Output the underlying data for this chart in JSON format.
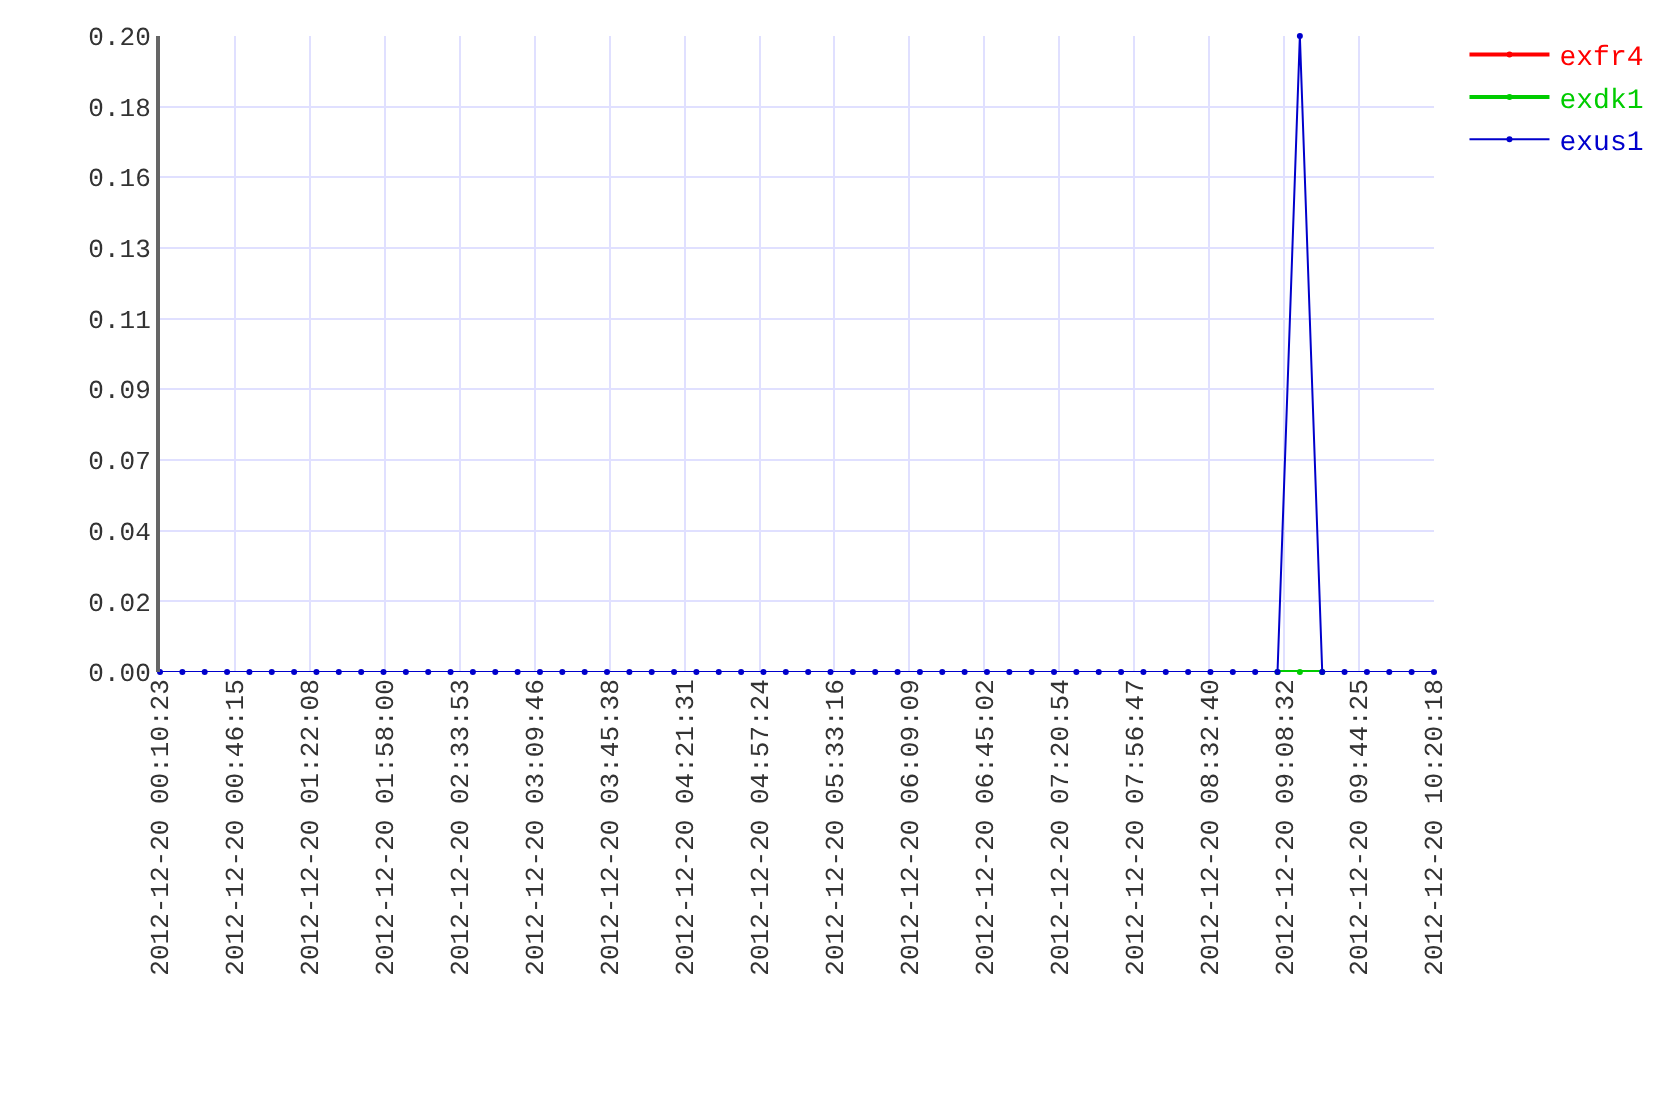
{
  "chart_data": {
    "type": "line",
    "x": [
      "2012-12-20T00:10:23",
      "2012-12-20T00:21:05",
      "2012-12-20T00:31:47",
      "2012-12-20T00:42:29",
      "2012-12-20T00:53:11",
      "2012-12-20T01:03:53",
      "2012-12-20T01:14:35",
      "2012-12-20T01:25:17",
      "2012-12-20T01:35:59",
      "2012-12-20T01:46:41",
      "2012-12-20T01:57:23",
      "2012-12-20T02:08:05",
      "2012-12-20T02:18:47",
      "2012-12-20T02:29:29",
      "2012-12-20T02:40:11",
      "2012-12-20T02:50:53",
      "2012-12-20T03:01:35",
      "2012-12-20T03:12:17",
      "2012-12-20T03:22:59",
      "2012-12-20T03:33:41",
      "2012-12-20T03:44:23",
      "2012-12-20T03:55:05",
      "2012-12-20T04:05:47",
      "2012-12-20T04:16:29",
      "2012-12-20T04:27:11",
      "2012-12-20T04:37:53",
      "2012-12-20T04:48:35",
      "2012-12-20T04:59:17",
      "2012-12-20T05:09:59",
      "2012-12-20T05:20:41",
      "2012-12-20T05:31:23",
      "2012-12-20T05:42:05",
      "2012-12-20T05:52:47",
      "2012-12-20T06:03:29",
      "2012-12-20T06:14:11",
      "2012-12-20T06:24:53",
      "2012-12-20T06:35:35",
      "2012-12-20T06:46:17",
      "2012-12-20T06:56:59",
      "2012-12-20T07:07:41",
      "2012-12-20T07:18:23",
      "2012-12-20T07:29:05",
      "2012-12-20T07:39:47",
      "2012-12-20T07:50:29",
      "2012-12-20T08:01:11",
      "2012-12-20T08:11:53",
      "2012-12-20T08:22:35",
      "2012-12-20T08:33:17",
      "2012-12-20T08:43:59",
      "2012-12-20T08:54:41",
      "2012-12-20T09:05:23",
      "2012-12-20T09:16:05",
      "2012-12-20T09:26:47",
      "2012-12-20T09:37:29",
      "2012-12-20T09:48:11",
      "2012-12-20T09:58:53",
      "2012-12-20T10:09:35",
      "2012-12-20T10:20:18"
    ],
    "series": [
      {
        "name": "exfr4",
        "color": "#ff0000",
        "values": [
          null,
          null,
          null,
          null,
          null,
          null,
          null,
          null,
          null,
          null,
          null,
          null,
          null,
          null,
          null,
          null,
          null,
          null,
          null,
          null,
          null,
          null,
          null,
          null,
          null,
          null,
          null,
          null,
          null,
          null,
          null,
          null,
          null,
          null,
          null,
          null,
          null,
          null,
          null,
          null,
          null,
          null,
          null,
          null,
          null,
          null,
          null,
          null,
          null,
          null,
          null,
          null,
          null,
          null,
          null,
          null,
          null,
          null
        ]
      },
      {
        "name": "exdk1",
        "color": "#00cc00",
        "values": [
          null,
          null,
          null,
          null,
          null,
          null,
          null,
          null,
          null,
          null,
          null,
          null,
          null,
          null,
          null,
          null,
          null,
          null,
          null,
          null,
          null,
          null,
          null,
          null,
          null,
          null,
          null,
          null,
          null,
          null,
          null,
          null,
          null,
          null,
          null,
          null,
          null,
          null,
          null,
          null,
          null,
          null,
          null,
          null,
          null,
          null,
          null,
          null,
          null,
          null,
          0,
          0,
          0,
          null,
          null,
          null,
          null,
          null
        ]
      },
      {
        "name": "exus1",
        "color": "#0000cc",
        "values": [
          0,
          0,
          0,
          0,
          0,
          0,
          0,
          0,
          0,
          0,
          0,
          0,
          0,
          0,
          0,
          0,
          0,
          0,
          0,
          0,
          0,
          0,
          0,
          0,
          0,
          0,
          0,
          0,
          0,
          0,
          0,
          0,
          0,
          0,
          0,
          0,
          0,
          0,
          0,
          0,
          0,
          0,
          0,
          0,
          0,
          0,
          0,
          0,
          0,
          0,
          0,
          0.2,
          0,
          0,
          0,
          0,
          0,
          0
        ]
      }
    ],
    "xlim": [
      "2012-12-20T00:10:23",
      "2012-12-20T10:20:18"
    ],
    "xticks": [
      {
        "value": "2012-12-20T00:10:23",
        "label": "2012-12-20 00:10:23"
      },
      {
        "value": "2012-12-20T00:46:15",
        "label": "2012-12-20 00:46:15"
      },
      {
        "value": "2012-12-20T01:22:08",
        "label": "2012-12-20 01:22:08"
      },
      {
        "value": "2012-12-20T01:58:00",
        "label": "2012-12-20 01:58:00"
      },
      {
        "value": "2012-12-20T02:33:53",
        "label": "2012-12-20 02:33:53"
      },
      {
        "value": "2012-12-20T03:09:46",
        "label": "2012-12-20 03:09:46"
      },
      {
        "value": "2012-12-20T03:45:38",
        "label": "2012-12-20 03:45:38"
      },
      {
        "value": "2012-12-20T04:21:31",
        "label": "2012-12-20 04:21:31"
      },
      {
        "value": "2012-12-20T04:57:24",
        "label": "2012-12-20 04:57:24"
      },
      {
        "value": "2012-12-20T05:33:16",
        "label": "2012-12-20 05:33:16"
      },
      {
        "value": "2012-12-20T06:09:09",
        "label": "2012-12-20 06:09:09"
      },
      {
        "value": "2012-12-20T06:45:02",
        "label": "2012-12-20 06:45:02"
      },
      {
        "value": "2012-12-20T07:20:54",
        "label": "2012-12-20 07:20:54"
      },
      {
        "value": "2012-12-20T07:56:47",
        "label": "2012-12-20 07:56:47"
      },
      {
        "value": "2012-12-20T08:32:40",
        "label": "2012-12-20 08:32:40"
      },
      {
        "value": "2012-12-20T09:08:32",
        "label": "2012-12-20 09:08:32"
      },
      {
        "value": "2012-12-20T09:44:25",
        "label": "2012-12-20 09:44:25"
      },
      {
        "value": "2012-12-20T10:20:18",
        "label": "2012-12-20 10:20:18"
      }
    ],
    "ylim": [
      0,
      0.2
    ],
    "yticks": [
      {
        "value": 0,
        "label": "0.00"
      },
      {
        "value": 0.0222,
        "label": "0.02"
      },
      {
        "value": 0.0444,
        "label": "0.04"
      },
      {
        "value": 0.0667,
        "label": "0.07"
      },
      {
        "value": 0.0889,
        "label": "0.09"
      },
      {
        "value": 0.1111,
        "label": "0.11"
      },
      {
        "value": 0.1333,
        "label": "0.13"
      },
      {
        "value": 0.1556,
        "label": "0.16"
      },
      {
        "value": 0.1778,
        "label": "0.18"
      },
      {
        "value": 0.2,
        "label": "0.20"
      }
    ],
    "grid": true,
    "legend": "top right",
    "marker": "circle",
    "line_style": "solid"
  }
}
